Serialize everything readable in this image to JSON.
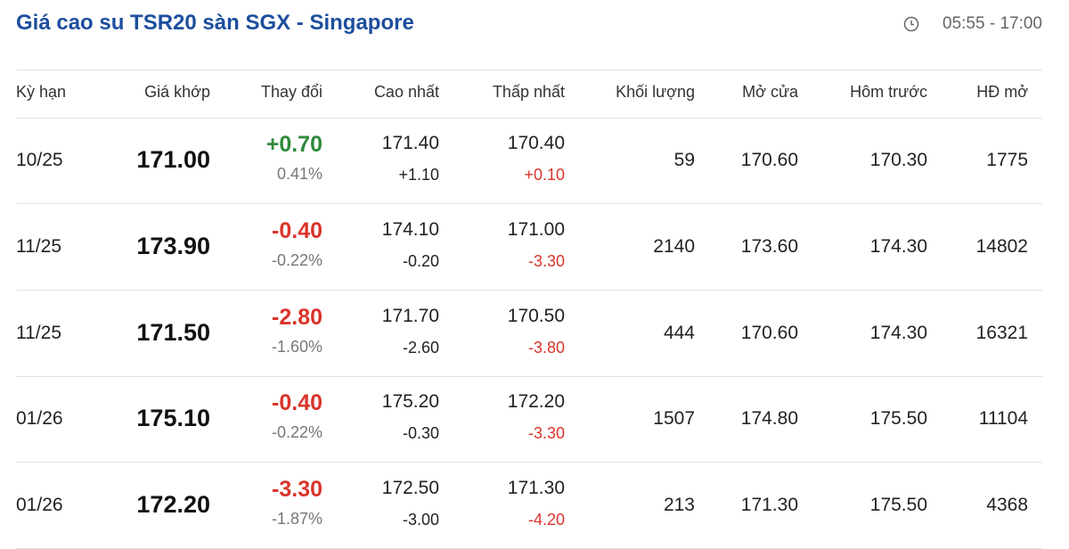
{
  "header": {
    "title": "Giá cao su TSR20 sàn SGX - Singapore",
    "time": "05:55 - 17:00"
  },
  "table": {
    "columns": [
      "Kỳ hạn",
      "Giá khớp",
      "Thay đổi",
      "Cao nhất",
      "Thấp nhất",
      "Khối lượng",
      "Mở cửa",
      "Hôm trước",
      "HĐ mở"
    ],
    "rows": [
      {
        "term": "10/25",
        "price": "171.00",
        "change": "+0.70",
        "change_pct": "0.41%",
        "high": "171.40",
        "high_change": "+1.10",
        "low": "170.40",
        "low_change": "+0.10",
        "volume": "59",
        "open": "170.60",
        "prev": "170.30",
        "oi": "1775"
      },
      {
        "term": "11/25",
        "price": "173.90",
        "change": "-0.40",
        "change_pct": "-0.22%",
        "high": "174.10",
        "high_change": "-0.20",
        "low": "171.00",
        "low_change": "-3.30",
        "volume": "2140",
        "open": "173.60",
        "prev": "174.30",
        "oi": "14802"
      },
      {
        "term": "11/25",
        "price": "171.50",
        "change": "-2.80",
        "change_pct": "-1.60%",
        "high": "171.70",
        "high_change": "-2.60",
        "low": "170.50",
        "low_change": "-3.80",
        "volume": "444",
        "open": "170.60",
        "prev": "174.30",
        "oi": "16321"
      },
      {
        "term": "01/26",
        "price": "175.10",
        "change": "-0.40",
        "change_pct": "-0.22%",
        "high": "175.20",
        "high_change": "-0.30",
        "low": "172.20",
        "low_change": "-3.30",
        "volume": "1507",
        "open": "174.80",
        "prev": "175.50",
        "oi": "11104"
      },
      {
        "term": "01/26",
        "price": "172.20",
        "change": "-3.30",
        "change_pct": "-1.87%",
        "high": "172.50",
        "high_change": "-3.00",
        "low": "171.30",
        "low_change": "-4.20",
        "volume": "213",
        "open": "171.30",
        "prev": "175.50",
        "oi": "4368"
      }
    ]
  }
}
